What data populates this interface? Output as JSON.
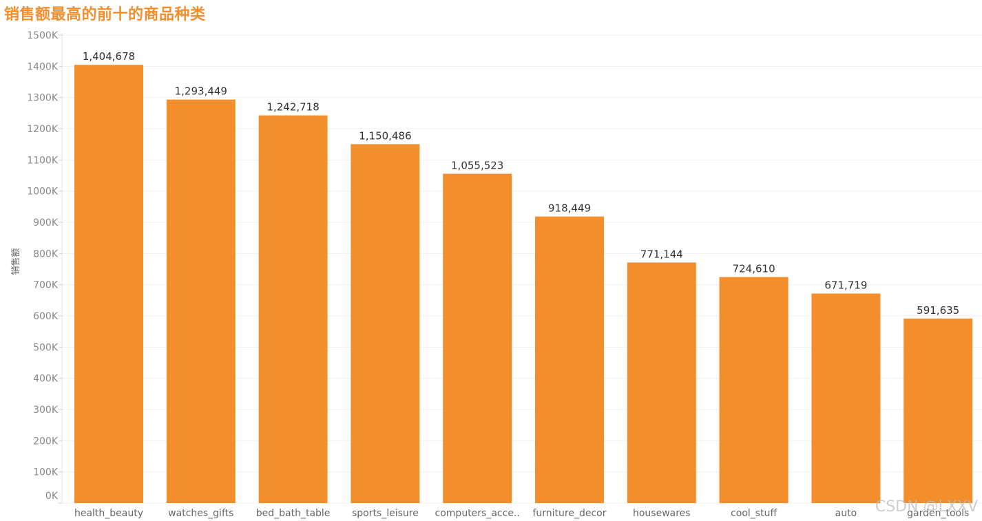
{
  "chart_data": {
    "type": "bar",
    "title": "销售额最高的前十的商品种类",
    "ylabel": "销售额",
    "xlabel": "",
    "categories": [
      "health_beauty",
      "watches_gifts",
      "bed_bath_table",
      "sports_leisure",
      "computers_acce..",
      "furniture_decor",
      "housewares",
      "cool_stuff",
      "auto",
      "garden_tools"
    ],
    "values": [
      1404678,
      1293449,
      1242718,
      1150486,
      1055523,
      918449,
      771144,
      724610,
      671719,
      591635
    ],
    "value_labels": [
      "1,404,678",
      "1,293,449",
      "1,242,718",
      "1,150,486",
      "1,055,523",
      "918,449",
      "771,144",
      "724,610",
      "671,719",
      "591,635"
    ],
    "ylim": [
      0,
      1500000
    ],
    "yticks": [
      0,
      100000,
      200000,
      300000,
      400000,
      500000,
      600000,
      700000,
      800000,
      900000,
      1000000,
      1100000,
      1200000,
      1300000,
      1400000,
      1500000
    ],
    "ytick_labels": [
      "0K",
      "100K",
      "200K",
      "300K",
      "400K",
      "500K",
      "600K",
      "700K",
      "800K",
      "900K",
      "1000K",
      "1100K",
      "1200K",
      "1300K",
      "1400K",
      "1500K"
    ],
    "grid": true,
    "bar_color": "#f28e2b",
    "title_color": "#f28e2b"
  },
  "watermark": "CSDN @LXXV"
}
